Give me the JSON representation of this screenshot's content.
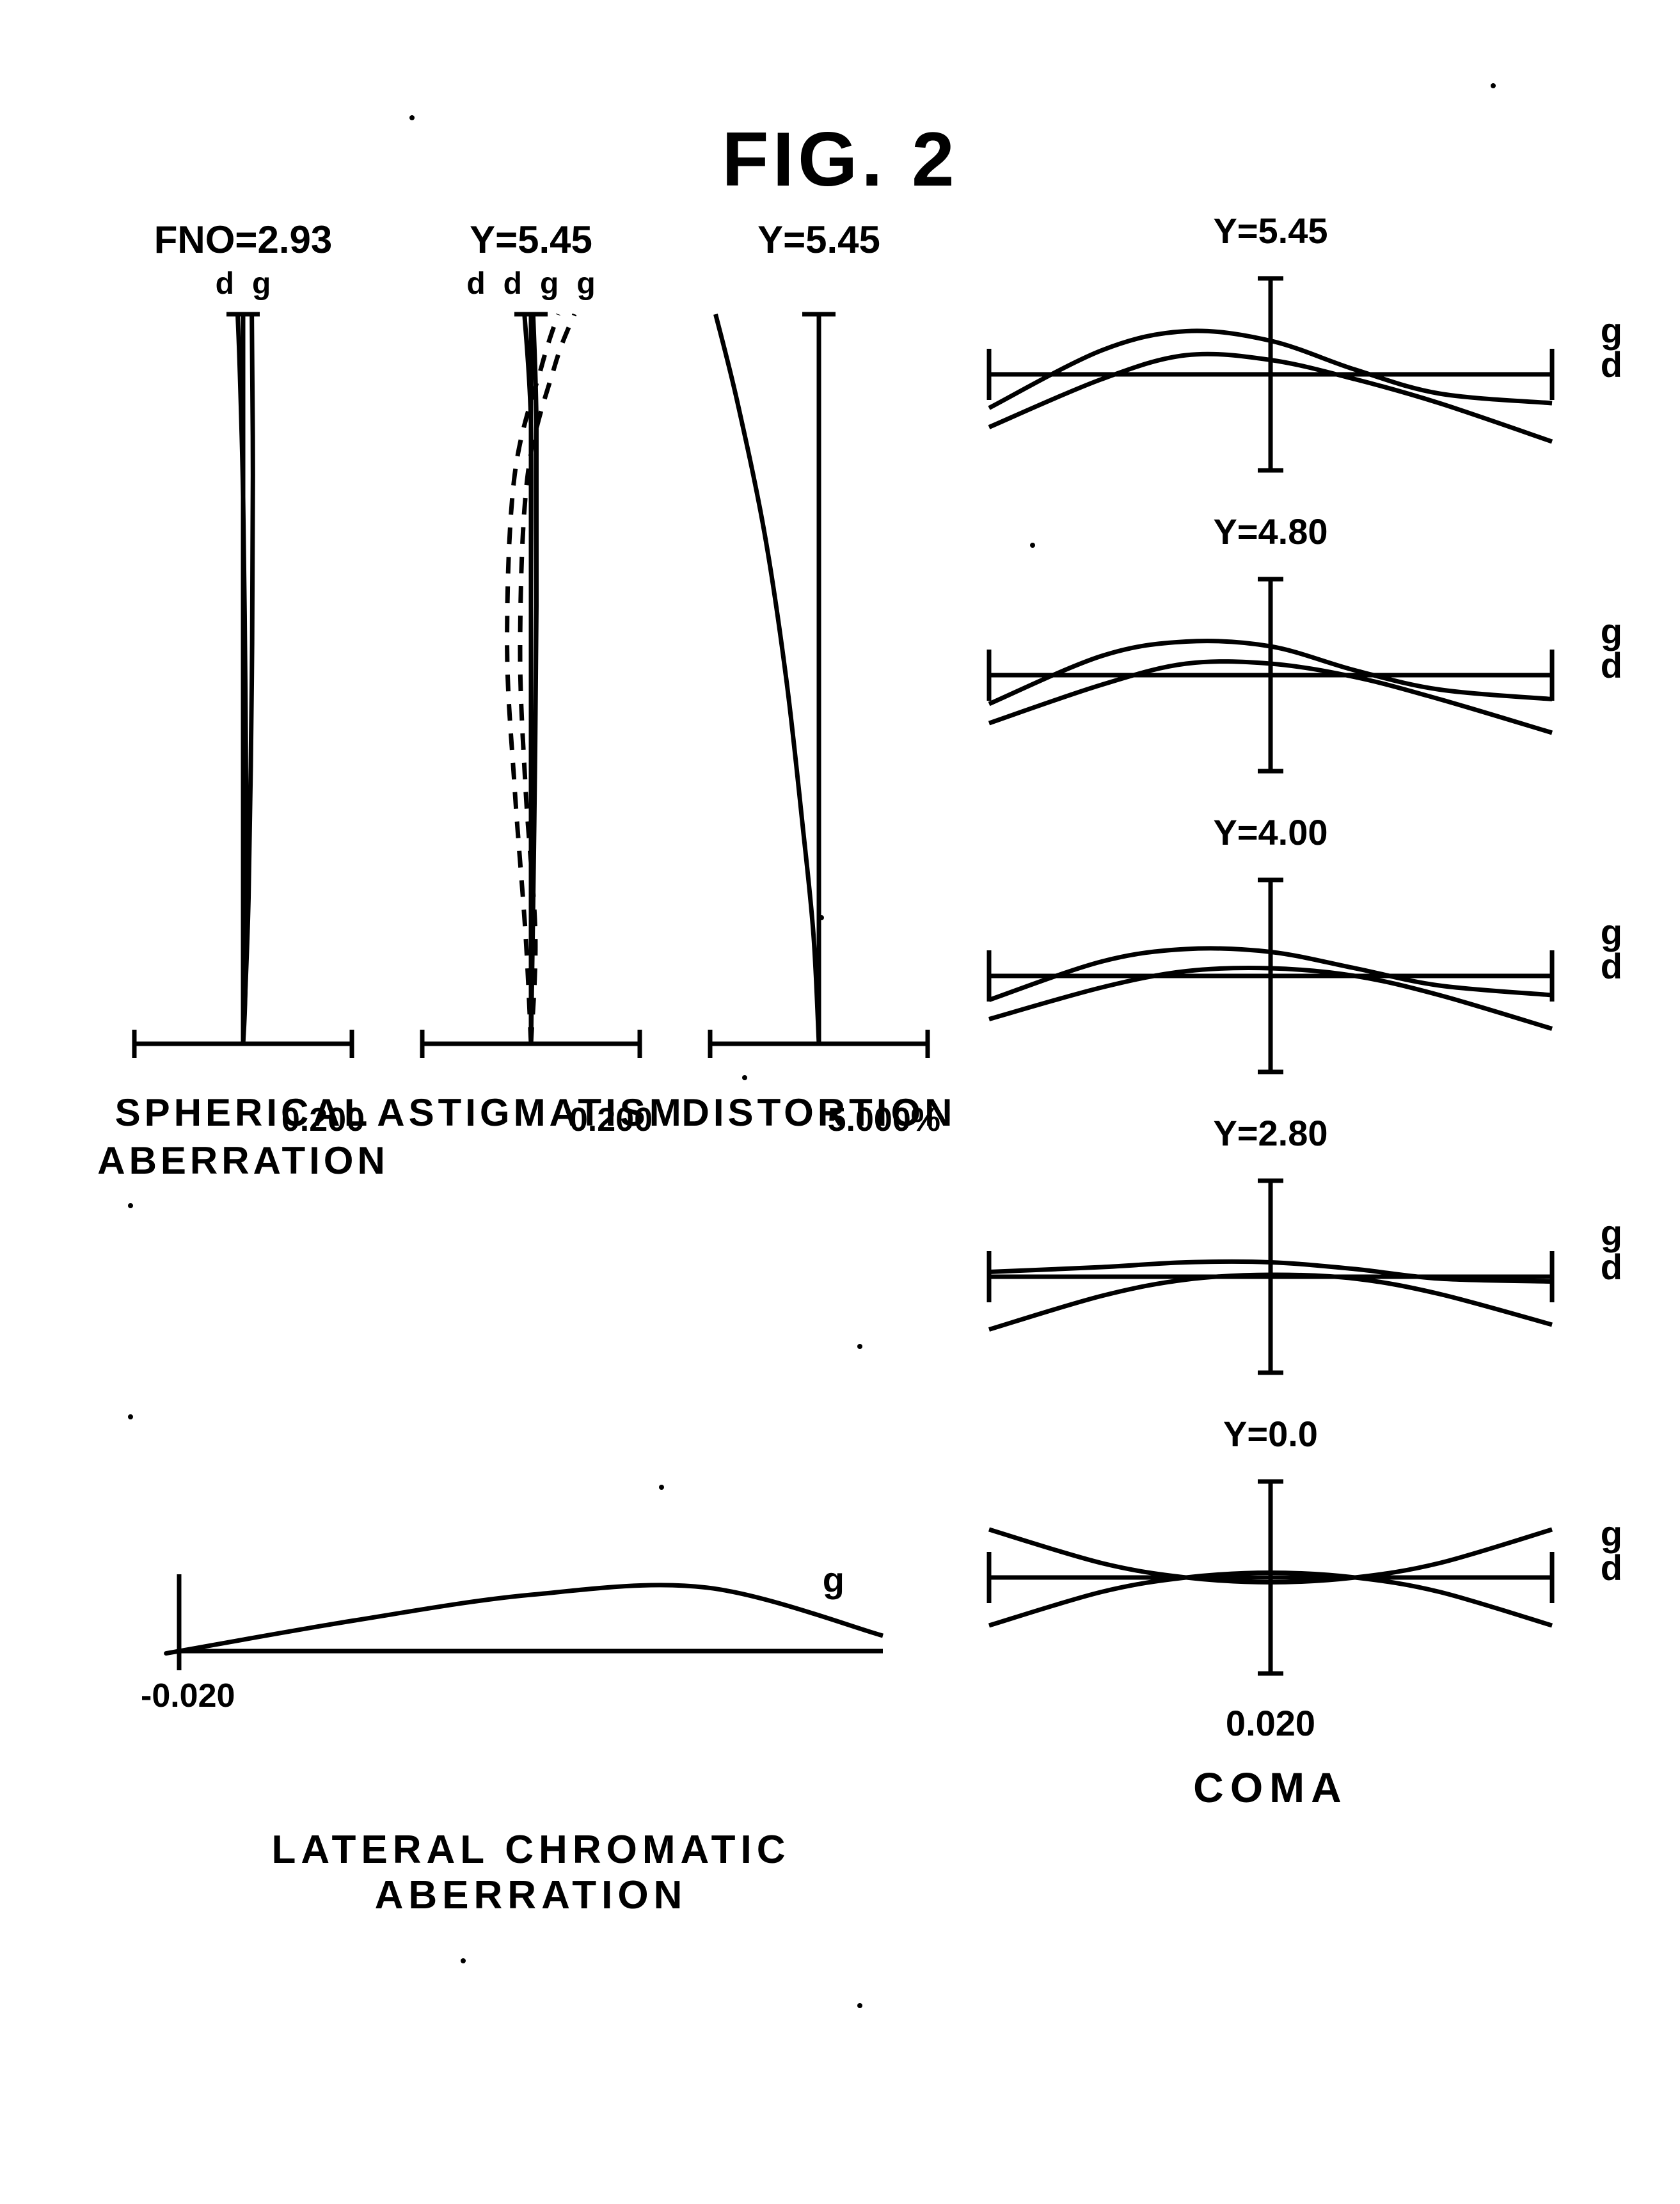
{
  "figure_title": "FIG. 2",
  "colors": {
    "stroke": "#000000",
    "background": "#ffffff"
  },
  "stroke_width": 7,
  "spherical": {
    "top_label": "FNO=2.93",
    "line_labels": [
      "d",
      "g"
    ],
    "axis_range_label": "0.200",
    "caption": "SPHERICAL\nABERRATION",
    "axis_height": 1200,
    "axis_halfwidth": 170,
    "d_curve": [
      [
        0,
        0
      ],
      [
        0.02,
        0.07
      ],
      [
        0.03,
        0.25
      ],
      [
        0.02,
        0.5
      ],
      [
        0.0,
        0.75
      ],
      [
        -0.03,
        0.92
      ],
      [
        -0.05,
        1.0
      ]
    ],
    "g_curve": [
      [
        0,
        0
      ],
      [
        0.05,
        0.2
      ],
      [
        0.08,
        0.5
      ],
      [
        0.09,
        0.78
      ],
      [
        0.08,
        1.0
      ]
    ]
  },
  "astigmatism": {
    "top_label": "Y=5.45",
    "line_labels": [
      "d",
      "d",
      "g",
      "g"
    ],
    "axis_range_label": "0.200",
    "caption": "ASTIGMATISM",
    "axis_height": 1200,
    "axis_halfwidth": 170,
    "solid_d": [
      [
        0,
        0
      ],
      [
        0.0,
        0.3
      ],
      [
        0.0,
        0.6
      ],
      [
        0.0,
        0.85
      ],
      [
        -0.06,
        1.0
      ]
    ],
    "solid_g": [
      [
        0,
        0
      ],
      [
        0.03,
        0.3
      ],
      [
        0.05,
        0.6
      ],
      [
        0.05,
        0.85
      ],
      [
        0.02,
        1.0
      ]
    ],
    "dash_d": [
      [
        0,
        0
      ],
      [
        -0.05,
        0.15
      ],
      [
        -0.15,
        0.35
      ],
      [
        -0.22,
        0.55
      ],
      [
        -0.15,
        0.78
      ],
      [
        0.1,
        0.93
      ],
      [
        0.25,
        1.0
      ]
    ],
    "dash_g": [
      [
        0,
        0
      ],
      [
        0.04,
        0.15
      ],
      [
        -0.05,
        0.35
      ],
      [
        -0.1,
        0.55
      ],
      [
        -0.03,
        0.78
      ],
      [
        0.22,
        0.93
      ],
      [
        0.4,
        1.0
      ]
    ]
  },
  "distortion": {
    "top_label": "Y=5.45",
    "axis_range_label": "5.000%",
    "caption": "DISTORTION",
    "axis_height": 1200,
    "axis_halfwidth": 170,
    "curve": [
      [
        0,
        0
      ],
      [
        -0.05,
        0.15
      ],
      [
        -0.15,
        0.3
      ],
      [
        -0.3,
        0.5
      ],
      [
        -0.5,
        0.7
      ],
      [
        -0.75,
        0.88
      ],
      [
        -0.95,
        1.0
      ]
    ]
  },
  "lateral": {
    "caption": "LATERAL CHROMATIC ABERRATION",
    "range_label": "-0.020",
    "g_label": "g",
    "axis_width": 1100,
    "g_curve": [
      [
        0,
        0
      ],
      [
        0.25,
        0.3
      ],
      [
        0.5,
        0.55
      ],
      [
        0.75,
        0.62
      ],
      [
        1.0,
        0.15
      ]
    ]
  },
  "coma": {
    "caption": "COMA",
    "scale_label": "0.020",
    "line_labels": [
      "g",
      "d"
    ],
    "axis_halfwidth": 440,
    "axis_halfheight": 150,
    "plots": [
      {
        "y_label": "Y=5.45",
        "d_curve": [
          [
            -1,
            -0.55
          ],
          [
            -0.6,
            -0.05
          ],
          [
            -0.3,
            0.2
          ],
          [
            0,
            0.15
          ],
          [
            0.3,
            -0.05
          ],
          [
            0.6,
            -0.3
          ],
          [
            1,
            -0.7
          ]
        ],
        "g_curve": [
          [
            -1,
            -0.35
          ],
          [
            -0.6,
            0.25
          ],
          [
            -0.3,
            0.45
          ],
          [
            0,
            0.35
          ],
          [
            0.3,
            0.05
          ],
          [
            0.6,
            -0.2
          ],
          [
            1,
            -0.3
          ]
        ]
      },
      {
        "y_label": "Y=4.80",
        "d_curve": [
          [
            -1,
            -0.5
          ],
          [
            -0.6,
            -0.1
          ],
          [
            -0.3,
            0.12
          ],
          [
            0,
            0.12
          ],
          [
            0.3,
            -0.02
          ],
          [
            0.6,
            -0.25
          ],
          [
            1,
            -0.6
          ]
        ],
        "g_curve": [
          [
            -1,
            -0.3
          ],
          [
            -0.6,
            0.2
          ],
          [
            -0.3,
            0.35
          ],
          [
            0,
            0.3
          ],
          [
            0.3,
            0.05
          ],
          [
            0.6,
            -0.15
          ],
          [
            1,
            -0.25
          ]
        ]
      },
      {
        "y_label": "Y=4.00",
        "d_curve": [
          [
            -1,
            -0.45
          ],
          [
            -0.6,
            -0.12
          ],
          [
            -0.3,
            0.05
          ],
          [
            0,
            0.08
          ],
          [
            0.3,
            0.0
          ],
          [
            0.6,
            -0.2
          ],
          [
            1,
            -0.55
          ]
        ],
        "g_curve": [
          [
            -1,
            -0.25
          ],
          [
            -0.6,
            0.15
          ],
          [
            -0.3,
            0.28
          ],
          [
            0,
            0.25
          ],
          [
            0.3,
            0.08
          ],
          [
            0.6,
            -0.1
          ],
          [
            1,
            -0.2
          ]
        ]
      },
      {
        "y_label": "Y=2.80",
        "d_curve": [
          [
            -1,
            -0.55
          ],
          [
            -0.6,
            -0.2
          ],
          [
            -0.3,
            -0.03
          ],
          [
            0,
            0.02
          ],
          [
            0.3,
            -0.02
          ],
          [
            0.6,
            -0.18
          ],
          [
            1,
            -0.5
          ]
        ],
        "g_curve": [
          [
            -1,
            0.05
          ],
          [
            -0.6,
            0.1
          ],
          [
            -0.3,
            0.15
          ],
          [
            0,
            0.15
          ],
          [
            0.3,
            0.08
          ],
          [
            0.6,
            -0.02
          ],
          [
            1,
            -0.05
          ]
        ]
      },
      {
        "y_label": "Y=0.0",
        "d_curve": [
          [
            -1,
            -0.5
          ],
          [
            -0.6,
            -0.15
          ],
          [
            -0.3,
            0.0
          ],
          [
            0,
            0.05
          ],
          [
            0.3,
            0.0
          ],
          [
            0.6,
            -0.15
          ],
          [
            1,
            -0.5
          ]
        ],
        "g_curve": [
          [
            -1,
            0.5
          ],
          [
            -0.6,
            0.15
          ],
          [
            -0.3,
            0.0
          ],
          [
            0,
            -0.05
          ],
          [
            0.3,
            0.0
          ],
          [
            0.6,
            0.15
          ],
          [
            1,
            0.5
          ]
        ]
      }
    ]
  },
  "decorative_dots": [
    [
      720,
      3060
    ],
    [
      1280,
      1430
    ],
    [
      1340,
      2100
    ],
    [
      1160,
      1680
    ],
    [
      200,
      1880
    ],
    [
      2330,
      130
    ],
    [
      1610,
      848
    ],
    [
      1340,
      3130
    ],
    [
      200,
      2210
    ],
    [
      640,
      180
    ],
    [
      1030,
      2320
    ]
  ]
}
